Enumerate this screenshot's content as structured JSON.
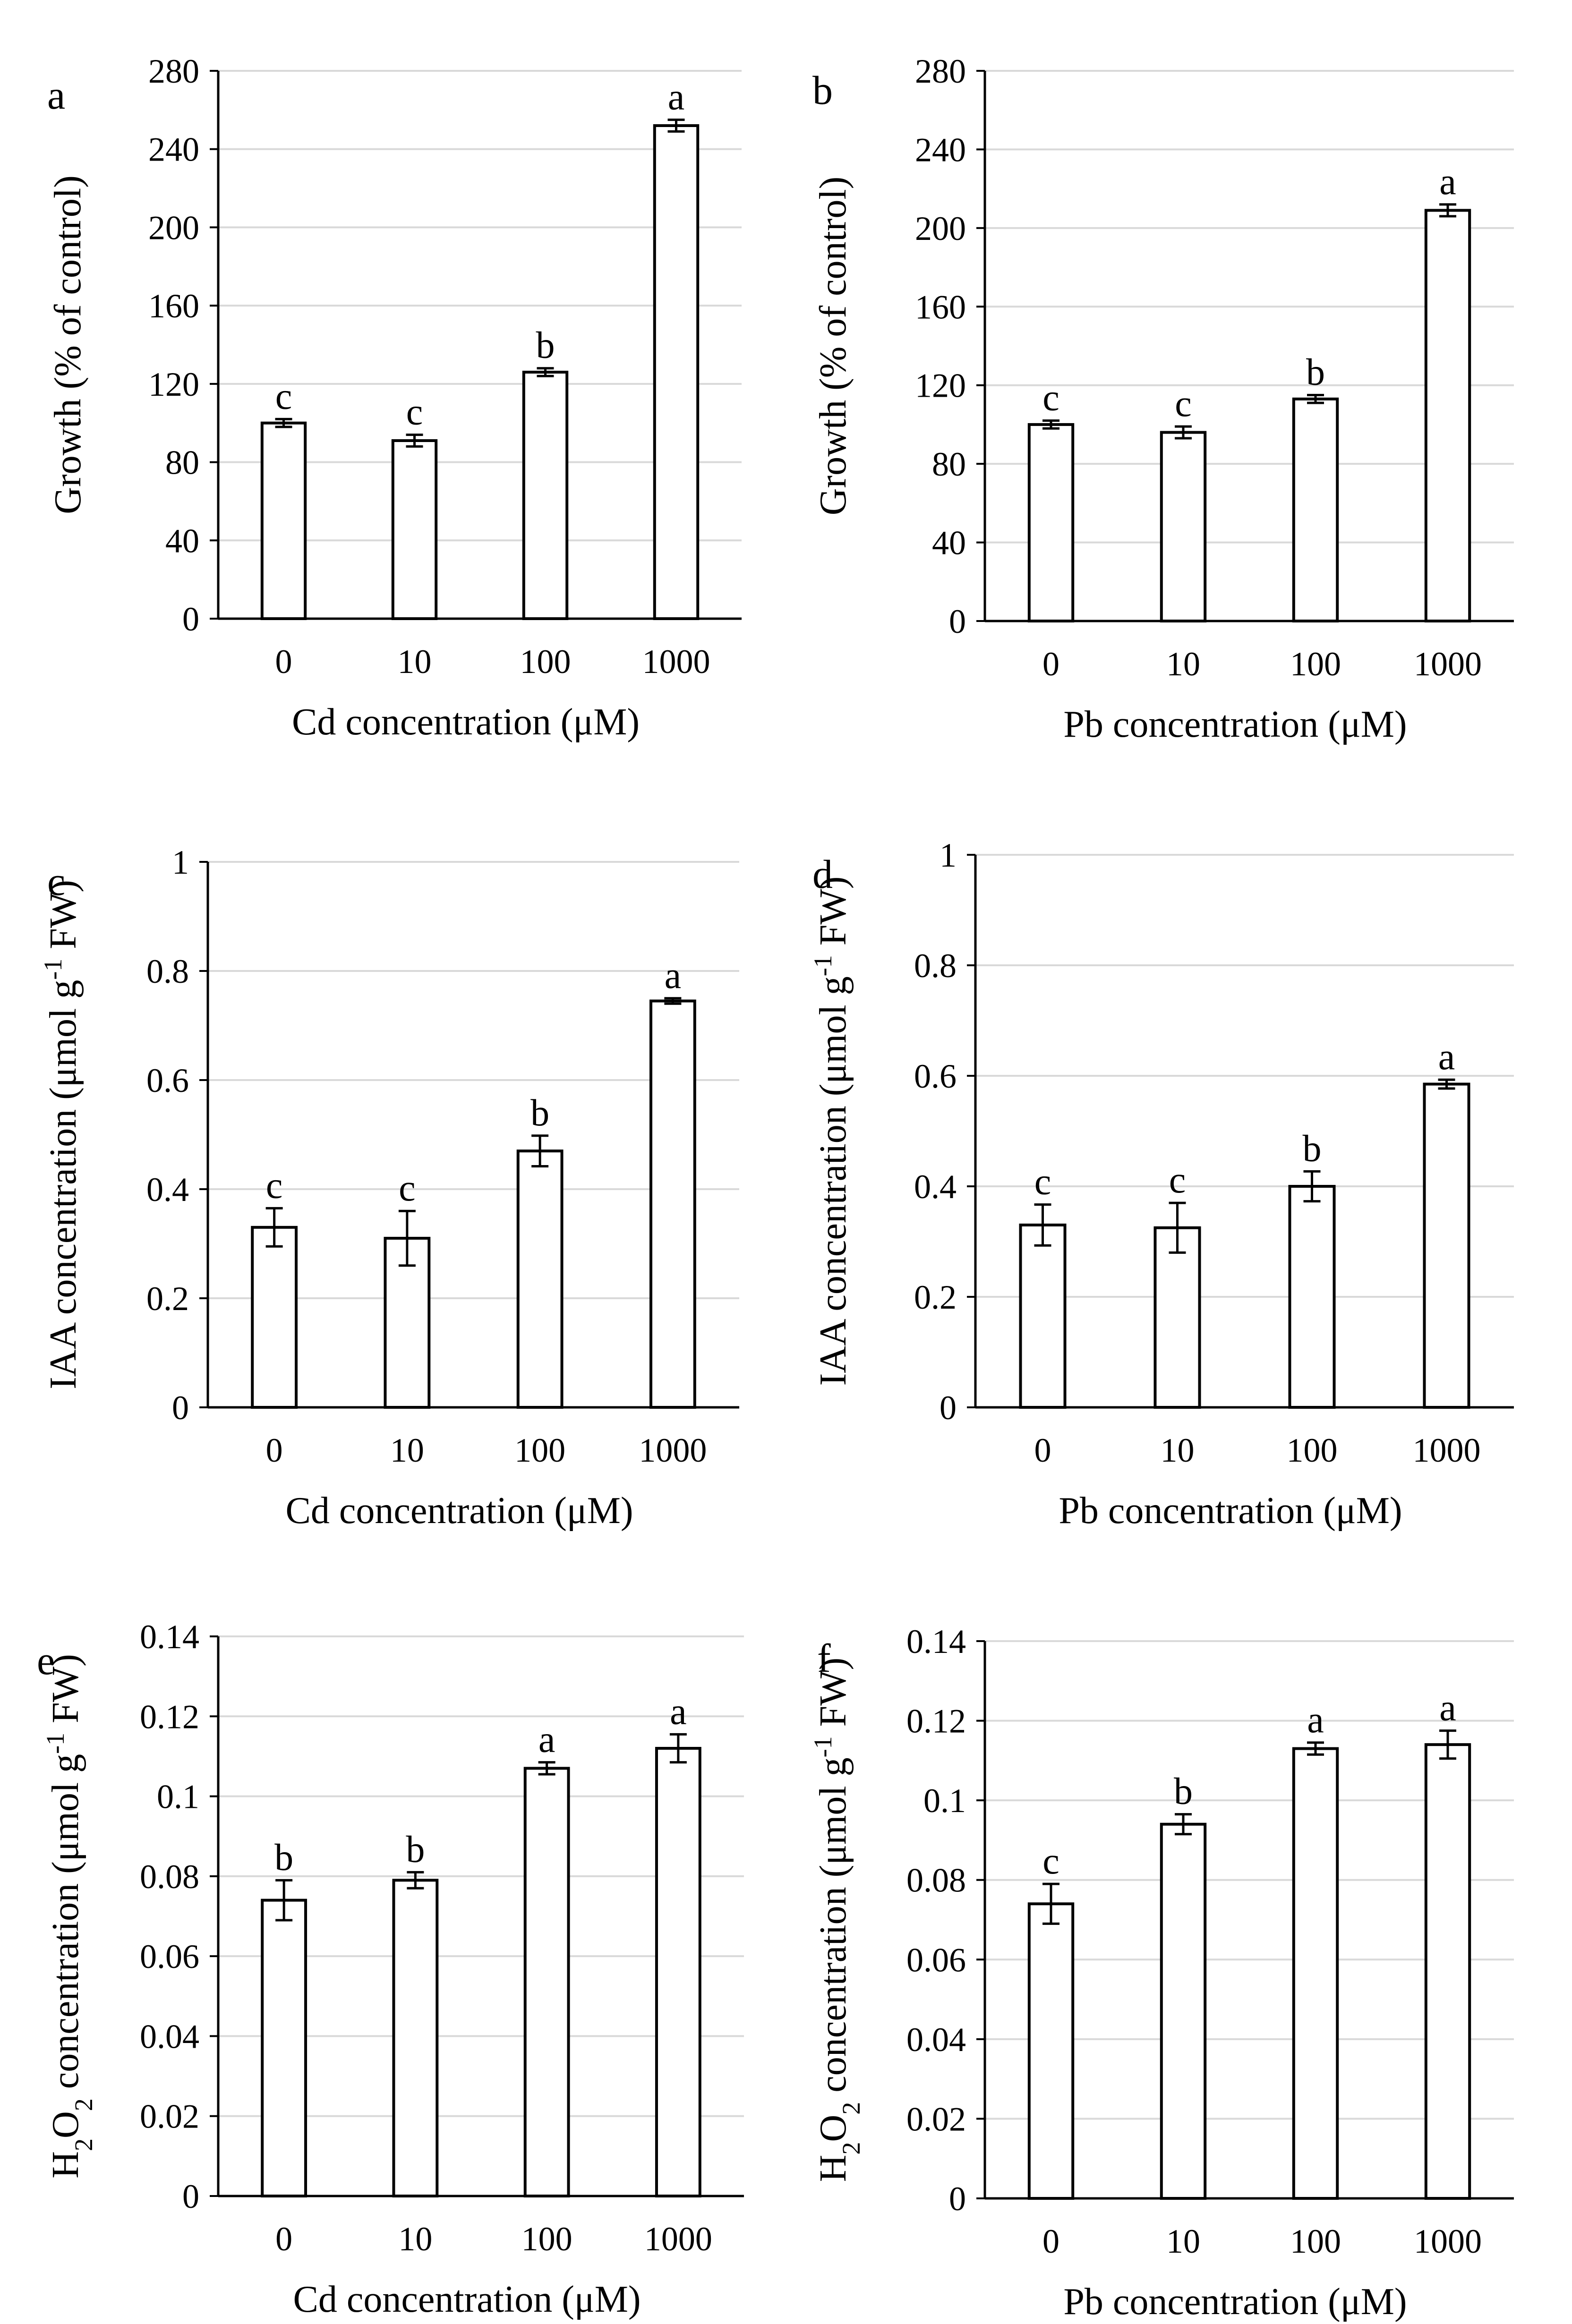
{
  "figure": {
    "background": "#ffffff",
    "bar_fill": "#ffffff",
    "bar_stroke": "#000000",
    "grid_color": "#d9d9d9"
  },
  "chart_data": [
    {
      "panel": "a",
      "type": "bar",
      "categories": [
        "0",
        "10",
        "100",
        "1000"
      ],
      "values": [
        100,
        91,
        126,
        252
      ],
      "errors": [
        2,
        3,
        2,
        3
      ],
      "significance": [
        "c",
        "c",
        "b",
        "a"
      ],
      "xlabel": "Cd concentration (μM)",
      "ylabel": "Growth (% of control)",
      "ylim": [
        0,
        280
      ],
      "yticks": [
        "0",
        "40",
        "80",
        "120",
        "160",
        "200",
        "240",
        "280"
      ],
      "grid": true
    },
    {
      "panel": "b",
      "type": "bar",
      "categories": [
        "0",
        "10",
        "100",
        "1000"
      ],
      "values": [
        100,
        96,
        113,
        209
      ],
      "errors": [
        2,
        3,
        2,
        3
      ],
      "significance": [
        "c",
        "c",
        "b",
        "a"
      ],
      "xlabel": "Pb concentration (μM)",
      "ylabel": "Growth (% of control)",
      "ylim": [
        0,
        280
      ],
      "yticks": [
        "0",
        "40",
        "80",
        "120",
        "160",
        "200",
        "240",
        "280"
      ],
      "grid": true
    },
    {
      "panel": "c",
      "type": "bar",
      "categories": [
        "0",
        "10",
        "100",
        "1000"
      ],
      "values": [
        0.33,
        0.31,
        0.47,
        0.745
      ],
      "errors": [
        0.035,
        0.05,
        0.028,
        0.005
      ],
      "significance": [
        "c",
        "c",
        "b",
        "a"
      ],
      "xlabel": "Cd concentration (μM)",
      "ylabel": "IAA concentration (μmol g-1 FW)",
      "ylabel_parts": [
        "IAA concentration (μmol g",
        "-1",
        " FW)"
      ],
      "ylim": [
        0,
        1
      ],
      "yticks": [
        "0",
        "0.2",
        "0.4",
        "0.6",
        "0.8",
        "1"
      ],
      "grid": true
    },
    {
      "panel": "d",
      "type": "bar",
      "categories": [
        "0",
        "10",
        "100",
        "1000"
      ],
      "values": [
        0.33,
        0.325,
        0.4,
        0.585
      ],
      "errors": [
        0.037,
        0.045,
        0.027,
        0.008
      ],
      "significance": [
        "c",
        "c",
        "b",
        "a"
      ],
      "xlabel": "Pb concentration (μM)",
      "ylabel": "IAA concentration (μmol g-1 FW)",
      "ylabel_parts": [
        "IAA concentration (μmol g",
        "-1",
        " FW)"
      ],
      "ylim": [
        0,
        1
      ],
      "yticks": [
        "0",
        "0.2",
        "0.4",
        "0.6",
        "0.8",
        "1"
      ],
      "grid": true
    },
    {
      "panel": "e",
      "type": "bar",
      "categories": [
        "0",
        "10",
        "100",
        "1000"
      ],
      "values": [
        0.074,
        0.079,
        0.107,
        0.112
      ],
      "errors": [
        0.005,
        0.002,
        0.0015,
        0.0035
      ],
      "significance": [
        "b",
        "b",
        "a",
        "a"
      ],
      "xlabel": "Cd concentration (μM)",
      "ylabel": "H2O2 concentration (μmol g-1 FW)",
      "ylabel_parts": [
        "H",
        "2",
        "O",
        "2",
        " concentration (μmol g",
        "-1",
        " FW)"
      ],
      "ylim": [
        0,
        0.14
      ],
      "yticks": [
        "0",
        "0.02",
        "0.04",
        "0.06",
        "0.08",
        "0.1",
        "0.12",
        "0.14"
      ],
      "grid": true
    },
    {
      "panel": "f",
      "type": "bar",
      "categories": [
        "0",
        "10",
        "100",
        "1000"
      ],
      "values": [
        0.074,
        0.094,
        0.113,
        0.114
      ],
      "errors": [
        0.005,
        0.0025,
        0.0015,
        0.0035
      ],
      "significance": [
        "c",
        "b",
        "a",
        "a"
      ],
      "xlabel": "Pb concentration (μM)",
      "ylabel": "H2O2 concentration (μmol g-1 FW)",
      "ylabel_parts": [
        "H",
        "2",
        "O",
        "2",
        " concentration (μmol g",
        "-1",
        " FW)"
      ],
      "ylim": [
        0,
        0.14
      ],
      "yticks": [
        "0",
        "0.02",
        "0.04",
        "0.06",
        "0.08",
        "0.1",
        "0.12",
        "0.14"
      ],
      "grid": true
    }
  ]
}
